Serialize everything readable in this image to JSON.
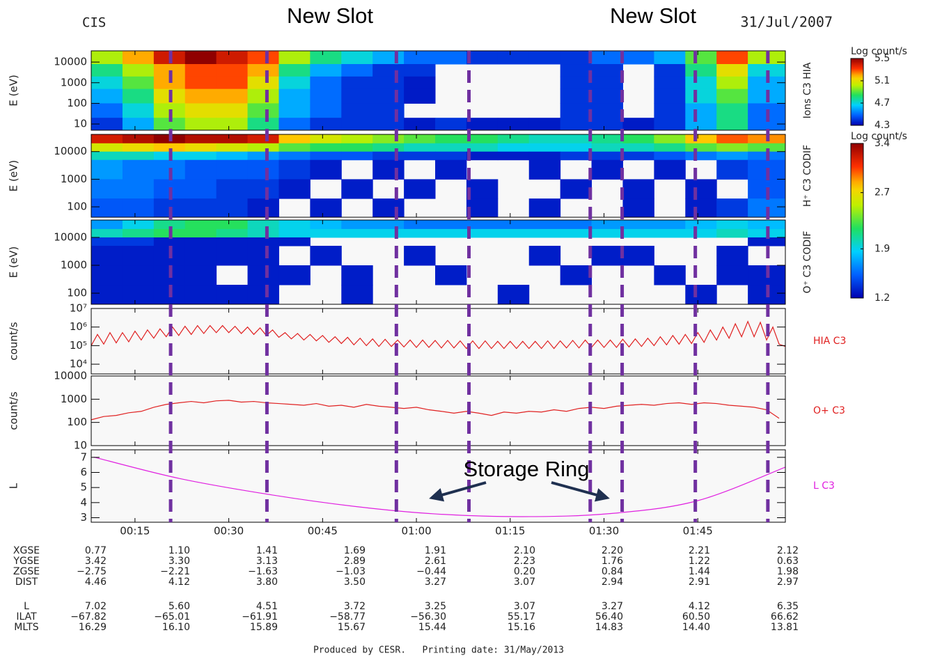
{
  "header": {
    "instrument": "CIS",
    "date": "31/Jul/2007"
  },
  "annotations": {
    "new_slot_left": "New Slot",
    "new_slot_right": "New Slot",
    "storage_ring": "Storage Ring"
  },
  "footer": "Produced by CESR.   Printing date: 31/May/2013",
  "time_axis": {
    "xlim": [
      8,
      119
    ],
    "xticks": [
      {
        "value": 15,
        "label": "00:15"
      },
      {
        "value": 30,
        "label": "00:30"
      },
      {
        "value": 45,
        "label": "00:45"
      },
      {
        "value": 60,
        "label": "01:00"
      },
      {
        "value": 75,
        "label": "01:15"
      },
      {
        "value": 90,
        "label": "01:30"
      },
      {
        "value": 105,
        "label": "01:45"
      }
    ]
  },
  "event_lines": {
    "color": "#7030a0",
    "x": [
      20.7,
      36.1,
      56.8,
      68.4,
      87.8,
      92.9,
      104.6,
      116.2
    ]
  },
  "chart_data": [
    {
      "type": "heatmap",
      "ylabel": "E (eV)",
      "side_label": "Ions C3 HIA",
      "log_y": true,
      "ylim": [
        5,
        35000
      ],
      "yticks": [
        10,
        100,
        1000,
        10000
      ],
      "clim": [
        4.3,
        5.5
      ],
      "colorbar": {
        "title": "Log count/s",
        "ticks": [
          5.5,
          5.1,
          4.7,
          4.3
        ]
      },
      "x_edges": [
        8,
        13,
        18,
        23,
        28,
        33,
        38,
        43,
        48,
        53,
        58,
        63,
        68,
        73,
        78,
        83,
        88,
        93,
        98,
        103,
        108,
        113,
        119
      ],
      "y_edges": [
        35000,
        8000,
        2000,
        500,
        100,
        20,
        5
      ],
      "values": [
        [
          5.0,
          5.2,
          5.4,
          5.5,
          5.4,
          5.3,
          5.0,
          4.8,
          4.7,
          4.6,
          4.5,
          4.5,
          4.4,
          4.4,
          4.4,
          4.4,
          4.5,
          4.5,
          4.6,
          4.9,
          5.3,
          5.0
        ],
        [
          4.8,
          5.0,
          5.2,
          5.3,
          5.3,
          5.2,
          4.8,
          4.6,
          4.5,
          4.4,
          4.4,
          null,
          null,
          null,
          null,
          4.4,
          4.4,
          null,
          4.4,
          4.8,
          5.1,
          4.7
        ],
        [
          4.7,
          4.9,
          5.2,
          5.3,
          5.3,
          5.1,
          4.7,
          4.5,
          4.4,
          4.4,
          4.35,
          null,
          null,
          null,
          null,
          4.4,
          4.4,
          null,
          4.4,
          4.7,
          5.0,
          4.6
        ],
        [
          4.6,
          4.8,
          5.1,
          5.2,
          5.2,
          5.0,
          4.6,
          4.5,
          4.4,
          4.4,
          4.35,
          null,
          null,
          null,
          null,
          4.4,
          4.4,
          null,
          4.4,
          4.7,
          4.9,
          4.6
        ],
        [
          4.5,
          4.7,
          5.0,
          5.1,
          5.1,
          4.9,
          4.6,
          4.5,
          4.4,
          4.4,
          null,
          null,
          null,
          null,
          null,
          4.4,
          4.4,
          null,
          4.4,
          4.6,
          4.8,
          4.5
        ],
        [
          4.4,
          4.6,
          4.9,
          5.0,
          5.0,
          4.8,
          4.5,
          4.4,
          4.4,
          4.4,
          4.35,
          4.4,
          4.35,
          4.35,
          4.35,
          4.4,
          4.4,
          4.35,
          4.4,
          4.6,
          4.8,
          4.5
        ]
      ]
    },
    {
      "type": "heatmap",
      "ylabel": "E (eV)",
      "side_label": "H⁺ C3 CODIF",
      "log_y": true,
      "ylim": [
        42,
        42000
      ],
      "yticks": [
        100,
        1000,
        10000
      ],
      "clim": [
        1.2,
        3.4
      ],
      "colorbar": {
        "title": "Log count/s",
        "ticks": [
          3.4,
          2.7,
          1.9,
          1.2
        ]
      },
      "x_edges": [
        8,
        13,
        18,
        23,
        28,
        33,
        38,
        43,
        48,
        53,
        58,
        63,
        68,
        73,
        78,
        83,
        88,
        93,
        98,
        103,
        108,
        113,
        119
      ],
      "y_edges": [
        42000,
        20000,
        10000,
        5000,
        1000,
        200,
        42
      ],
      "values": [
        [
          3.2,
          3.3,
          3.4,
          3.3,
          3.3,
          3.2,
          2.8,
          2.6,
          2.5,
          2.4,
          2.3,
          2.2,
          2.2,
          2.1,
          2.0,
          2.0,
          2.1,
          2.2,
          2.4,
          2.8,
          3.0,
          2.9
        ],
        [
          2.6,
          2.7,
          2.8,
          2.7,
          2.6,
          2.5,
          2.3,
          2.2,
          2.2,
          2.1,
          2.0,
          2.0,
          2.0,
          1.9,
          1.9,
          1.9,
          2.0,
          2.0,
          2.1,
          2.3,
          2.4,
          2.3
        ],
        [
          2.0,
          2.0,
          1.9,
          1.9,
          1.8,
          1.7,
          1.6,
          1.5,
          1.5,
          1.4,
          1.4,
          1.4,
          1.3,
          1.3,
          1.3,
          1.4,
          1.4,
          1.4,
          1.5,
          1.6,
          1.7,
          1.6
        ],
        [
          1.7,
          1.6,
          1.6,
          1.5,
          1.5,
          1.5,
          1.4,
          1.3,
          null,
          1.3,
          null,
          1.3,
          null,
          null,
          1.3,
          null,
          1.3,
          null,
          1.3,
          null,
          1.4,
          1.5
        ],
        [
          1.6,
          1.6,
          1.5,
          1.5,
          1.4,
          1.4,
          1.3,
          null,
          1.3,
          null,
          1.3,
          null,
          1.3,
          null,
          null,
          1.3,
          null,
          1.3,
          null,
          1.3,
          null,
          1.5
        ],
        [
          1.5,
          1.5,
          1.4,
          1.4,
          1.4,
          1.3,
          null,
          1.3,
          null,
          1.3,
          null,
          null,
          1.3,
          null,
          1.3,
          null,
          null,
          1.3,
          null,
          1.3,
          1.4,
          1.6
        ]
      ]
    },
    {
      "type": "heatmap",
      "ylabel": "E (eV)",
      "side_label": "O⁺ C3 CODIF",
      "log_y": true,
      "ylim": [
        40,
        42000
      ],
      "yticks": [
        100,
        1000,
        10000
      ],
      "clim": [
        1.2,
        3.4
      ],
      "x_edges": [
        8,
        13,
        18,
        23,
        28,
        33,
        38,
        43,
        48,
        53,
        58,
        63,
        68,
        73,
        78,
        83,
        88,
        93,
        98,
        103,
        108,
        113,
        119
      ],
      "y_edges": [
        42000,
        20000,
        10000,
        5000,
        1000,
        200,
        40
      ],
      "values": [
        [
          1.7,
          1.9,
          2.1,
          2.2,
          2.2,
          2.0,
          1.9,
          1.8,
          1.7,
          1.7,
          1.6,
          1.6,
          1.6,
          1.6,
          1.6,
          1.6,
          1.7,
          1.7,
          1.7,
          1.8,
          1.9,
          1.8
        ],
        [
          2.0,
          2.1,
          2.2,
          2.2,
          2.1,
          2.0,
          1.9,
          1.9,
          1.9,
          1.9,
          1.9,
          1.9,
          1.9,
          1.9,
          1.9,
          1.9,
          1.9,
          1.9,
          1.9,
          1.9,
          2.0,
          1.9
        ],
        [
          1.4,
          1.4,
          1.3,
          1.3,
          1.3,
          1.3,
          1.3,
          null,
          null,
          null,
          null,
          null,
          null,
          null,
          null,
          null,
          null,
          null,
          null,
          null,
          null,
          1.3
        ],
        [
          1.3,
          1.3,
          1.3,
          1.3,
          1.3,
          1.3,
          null,
          1.3,
          null,
          null,
          1.3,
          null,
          null,
          null,
          1.3,
          null,
          1.3,
          1.3,
          null,
          null,
          1.3,
          null
        ],
        [
          1.3,
          1.3,
          1.3,
          1.3,
          null,
          1.3,
          1.3,
          null,
          1.3,
          null,
          null,
          1.3,
          null,
          null,
          null,
          1.3,
          null,
          null,
          1.3,
          null,
          1.3,
          1.3
        ],
        [
          1.3,
          1.3,
          1.3,
          1.3,
          1.3,
          1.3,
          null,
          null,
          1.3,
          null,
          null,
          null,
          null,
          1.3,
          null,
          null,
          null,
          null,
          null,
          1.3,
          null,
          1.3
        ]
      ]
    },
    {
      "type": "line",
      "ylabel": "count/s",
      "log_y": true,
      "ylim": [
        3000,
        10000000
      ],
      "yticks": [
        {
          "value": 10000,
          "label": "10⁴"
        },
        {
          "value": 100000,
          "label": "10⁵"
        },
        {
          "value": 1000000,
          "label": "10⁶"
        },
        {
          "value": 10000000,
          "label": "10⁷"
        }
      ],
      "x": [
        8,
        9,
        10,
        11,
        12,
        13,
        14,
        15,
        16,
        17,
        18,
        19,
        20,
        21,
        22,
        23,
        24,
        25,
        26,
        27,
        28,
        29,
        30,
        31,
        32,
        33,
        34,
        35,
        36,
        37,
        38,
        39,
        40,
        41,
        42,
        43,
        44,
        45,
        46,
        47,
        48,
        49,
        50,
        51,
        52,
        53,
        54,
        55,
        56,
        57,
        58,
        59,
        60,
        61,
        62,
        63,
        64,
        65,
        66,
        67,
        68,
        69,
        70,
        71,
        72,
        73,
        74,
        75,
        76,
        77,
        78,
        79,
        80,
        81,
        82,
        83,
        84,
        85,
        86,
        87,
        88,
        89,
        90,
        91,
        92,
        93,
        94,
        95,
        96,
        97,
        98,
        99,
        100,
        101,
        102,
        103,
        104,
        105,
        106,
        107,
        108,
        109,
        110,
        111,
        112,
        113,
        114,
        115,
        116,
        117,
        118,
        119
      ],
      "series": [
        {
          "name": "HIA C3",
          "color": "#e02020",
          "values": [
            100000.0,
            400000.0,
            120000.0,
            500000.0,
            140000.0,
            500000.0,
            160000.0,
            600000.0,
            200000.0,
            700000.0,
            250000.0,
            800000.0,
            300000.0,
            1000000.0,
            350000.0,
            1100000.0,
            400000.0,
            1200000.0,
            450000.0,
            1200000.0,
            500000.0,
            1200000.0,
            500000.0,
            1100000.0,
            450000.0,
            1000000.0,
            400000.0,
            900000.0,
            350000.0,
            700000.0,
            280000.0,
            500000.0,
            230000.0,
            450000.0,
            200000.0,
            400000.0,
            180000.0,
            350000.0,
            150000.0,
            300000.0,
            130000.0,
            280000.0,
            110000.0,
            250000.0,
            100000.0,
            230000.0,
            90000.0,
            220000.0,
            90000.0,
            200000.0,
            85000.0,
            200000.0,
            80000.0,
            200000.0,
            80000.0,
            190000.0,
            75000.0,
            190000.0,
            75000.0,
            180000.0,
            70000.0,
            180000.0,
            70000.0,
            180000.0,
            70000.0,
            170000.0,
            70000.0,
            170000.0,
            70000.0,
            170000.0,
            70000.0,
            170000.0,
            70000.0,
            180000.0,
            70000.0,
            180000.0,
            75000.0,
            190000.0,
            75000.0,
            200000.0,
            80000.0,
            200000.0,
            80000.0,
            200000.0,
            80000.0,
            220000.0,
            85000.0,
            230000.0,
            90000.0,
            250000.0,
            100000.0,
            300000.0,
            110000.0,
            350000.0,
            120000.0,
            400000.0,
            130000.0,
            500000.0,
            150000.0,
            700000.0,
            200000.0,
            1000000.0,
            250000.0,
            1500000.0,
            300000.0,
            2000000.0,
            300000.0,
            1800000.0,
            200000.0,
            1000000.0,
            120000.0,
            90000.0
          ]
        }
      ]
    },
    {
      "type": "line",
      "ylabel": "count/s",
      "log_y": true,
      "ylim": [
        10,
        10000
      ],
      "yticks": [
        10,
        100,
        1000,
        10000
      ],
      "x": [
        8,
        10,
        12,
        14,
        16,
        18,
        20,
        22,
        24,
        26,
        28,
        30,
        32,
        34,
        36,
        38,
        40,
        42,
        44,
        46,
        48,
        50,
        52,
        54,
        56,
        58,
        60,
        62,
        64,
        66,
        68,
        70,
        72,
        74,
        76,
        78,
        80,
        82,
        84,
        86,
        88,
        90,
        92,
        94,
        96,
        98,
        100,
        102,
        104,
        106,
        108,
        110,
        112,
        114,
        116,
        118
      ],
      "series": [
        {
          "name": "O+ C3",
          "color": "#e02020",
          "values": [
            130,
            180,
            200,
            260,
            300,
            450,
            600,
            700,
            800,
            700,
            850,
            900,
            750,
            800,
            700,
            650,
            600,
            550,
            650,
            500,
            550,
            450,
            600,
            500,
            450,
            400,
            450,
            350,
            300,
            250,
            300,
            250,
            200,
            280,
            250,
            300,
            280,
            350,
            300,
            400,
            450,
            400,
            500,
            550,
            600,
            550,
            650,
            700,
            600,
            700,
            650,
            550,
            500,
            450,
            350,
            150
          ]
        }
      ]
    },
    {
      "type": "line",
      "ylabel": "L",
      "log_y": false,
      "smooth": true,
      "ylim": [
        2.7,
        7.5
      ],
      "yticks": [
        3,
        4,
        5,
        6,
        7
      ],
      "x": [
        8.4,
        22.1,
        36.9,
        50.7,
        63.0,
        76.9,
        90.9,
        104.9,
        119
      ],
      "series": [
        {
          "name": "L C3",
          "color": "#e020e0",
          "values": [
            7.02,
            5.6,
            4.51,
            3.72,
            3.25,
            3.07,
            3.27,
            4.12,
            6.35
          ]
        }
      ]
    }
  ],
  "orbit_table": {
    "rows": [
      {
        "label": "XGSE",
        "values": [
          "0.77",
          "1.10",
          "1.41",
          "1.69",
          "1.91",
          "2.10",
          "2.20",
          "2.21",
          "2.12"
        ]
      },
      {
        "label": "YGSE",
        "values": [
          "3.42",
          "3.30",
          "3.13",
          "2.89",
          "2.61",
          "2.23",
          "1.76",
          "1.22",
          "0.63"
        ]
      },
      {
        "label": "ZGSE",
        "values": [
          "−2.75",
          "−2.21",
          "−1.63",
          "−1.03",
          "−0.44",
          "0.20",
          "0.84",
          "1.44",
          "1.98"
        ]
      },
      {
        "label": "DIST",
        "values": [
          "4.46",
          "4.12",
          "3.80",
          "3.50",
          "3.27",
          "3.07",
          "2.94",
          "2.91",
          "2.97"
        ]
      },
      {
        "label": "L",
        "values": [
          "7.02",
          "5.60",
          "4.51",
          "3.72",
          "3.25",
          "3.07",
          "3.27",
          "4.12",
          "6.35"
        ]
      },
      {
        "label": "ILAT",
        "values": [
          "−67.82",
          "−65.01",
          "−61.91",
          "−58.77",
          "−56.30",
          "55.17",
          "56.40",
          "60.50",
          "66.62"
        ]
      },
      {
        "label": "MLTS",
        "values": [
          "16.29",
          "16.10",
          "15.89",
          "15.67",
          "15.44",
          "15.16",
          "14.83",
          "14.40",
          "13.81"
        ]
      }
    ]
  }
}
